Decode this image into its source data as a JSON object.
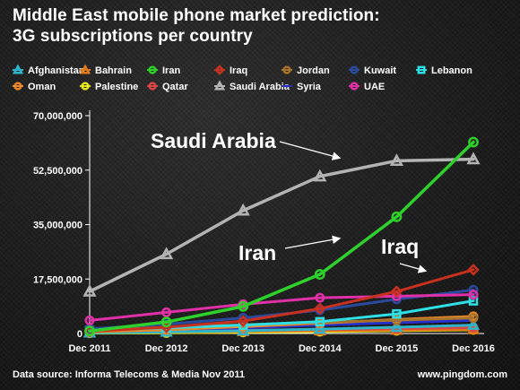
{
  "header": {
    "title_line1": "Middle East mobile phone market prediction:",
    "title_line2": "3G subscriptions per country"
  },
  "footer": {
    "source": "Data source: Informa Telecoms & Media Nov 2011",
    "url": "www.pingdom.com"
  },
  "chart_data": {
    "type": "line",
    "title": "Middle East mobile phone market prediction: 3G subscriptions per country",
    "xlabel": "",
    "ylabel": "",
    "categories": [
      "Dec 2011",
      "Dec 2012",
      "Dec 2013",
      "Dec 2014",
      "Dec 2015",
      "Dec 2016"
    ],
    "ylim": [
      0,
      70000000
    ],
    "yticks": [
      0,
      17500000,
      35000000,
      52500000,
      70000000
    ],
    "ytick_labels": [
      "0",
      "17,500,000",
      "35,000,000",
      "52,500,000",
      "70,000,000"
    ],
    "grid": false,
    "legend_position": "top",
    "series": [
      {
        "name": "Afghanistan",
        "marker": "triangle",
        "color": "#2fb4c9",
        "values": [
          200000,
          500000,
          900000,
          1400000,
          2000000,
          2700000
        ]
      },
      {
        "name": "Bahrain",
        "marker": "triangle",
        "color": "#e07a1a",
        "values": [
          300000,
          500000,
          700000,
          900000,
          1100000,
          1300000
        ]
      },
      {
        "name": "Iran",
        "marker": "circle",
        "color": "#2ed12b",
        "values": [
          800000,
          3700000,
          8700000,
          19000000,
          37500000,
          61500000
        ]
      },
      {
        "name": "Iraq",
        "marker": "diamond",
        "color": "#c8301f",
        "values": [
          700000,
          2000000,
          4000000,
          8000000,
          13500000,
          20500000
        ]
      },
      {
        "name": "Jordan",
        "marker": "circle",
        "color": "#a8742a",
        "values": [
          1200000,
          2000000,
          2800000,
          3600000,
          4300000,
          5000000
        ]
      },
      {
        "name": "Kuwait",
        "marker": "circle",
        "color": "#2a4a9e",
        "values": [
          1500000,
          3000000,
          5000000,
          7500000,
          11000000,
          14000000
        ]
      },
      {
        "name": "Lebanon",
        "marker": "square",
        "color": "#2ee0e6",
        "values": [
          1000000,
          1800000,
          2700000,
          3800000,
          6300000,
          10500000
        ]
      },
      {
        "name": "Oman",
        "marker": "circle",
        "color": "#e9882a",
        "values": [
          500000,
          1200000,
          2200000,
          3300000,
          4500000,
          5500000
        ]
      },
      {
        "name": "Palestine",
        "marker": "circle",
        "color": "#e6e61a",
        "values": [
          100000,
          200000,
          400000,
          600000,
          900000,
          1200000
        ]
      },
      {
        "name": "Qatar",
        "marker": "circle",
        "color": "#d84545",
        "values": [
          400000,
          700000,
          1000000,
          1300000,
          1600000,
          1900000
        ]
      },
      {
        "name": "Saudi Arabia",
        "marker": "triangle",
        "color": "#b3b3b3",
        "values": [
          13500000,
          25500000,
          39500000,
          50500000,
          55500000,
          56000000
        ]
      },
      {
        "name": "Syria",
        "marker": "none",
        "color": "#2530cc",
        "values": [
          500000,
          1000000,
          1800000,
          2700000,
          3500000,
          4200000
        ]
      },
      {
        "name": "UAE",
        "marker": "circle",
        "color": "#e030a8",
        "values": [
          4200000,
          6800000,
          9400000,
          11500000,
          12000000,
          12500000
        ]
      }
    ],
    "annotations": [
      "Saudi Arabia",
      "Iran",
      "Iraq"
    ]
  }
}
